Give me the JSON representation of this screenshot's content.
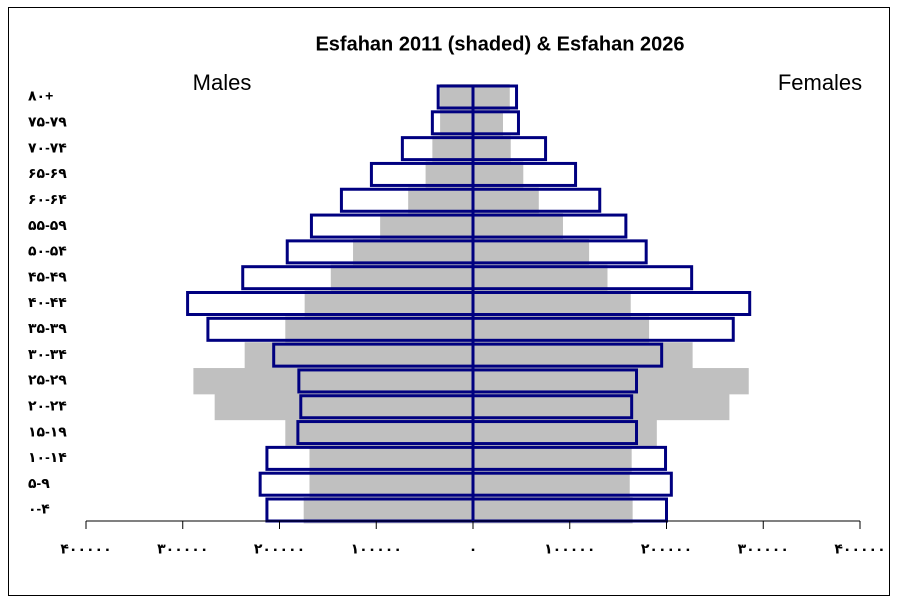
{
  "chart_data": {
    "type": "pyramid",
    "title": "Esfahan 2011 (shaded) & Esfahan 2026",
    "categories": [
      "۰-۴",
      "۵-۹",
      "۱۰-۱۴",
      "۱۵-۱۹",
      "۲۰-۲۴",
      "۲۵-۲۹",
      "۳۰-۳۴",
      "۳۵-۳۹",
      "۴۰-۴۴",
      "۴۵-۴۹",
      "۵۰-۵۴",
      "۵۵-۵۹",
      "۶۰-۶۴",
      "۶۵-۶۹",
      "۷۰-۷۴",
      "۷۵-۷۹",
      "۸۰+"
    ],
    "series": [
      {
        "name": "Males",
        "side": "left",
        "shaded": [
          175000,
          169000,
          169000,
          194000,
          267000,
          289000,
          236000,
          194000,
          174000,
          147000,
          124000,
          96000,
          67000,
          49000,
          42000,
          34000,
          34000
        ],
        "outline": [
          213000,
          220000,
          213000,
          181000,
          178000,
          180000,
          206000,
          274000,
          295000,
          238000,
          192000,
          167000,
          136000,
          105000,
          73000,
          42000,
          36000
        ]
      },
      {
        "name": "Females",
        "side": "right",
        "shaded": [
          165000,
          162000,
          164000,
          190000,
          265000,
          285000,
          227000,
          182000,
          163000,
          139000,
          120000,
          93000,
          68000,
          52000,
          39000,
          31000,
          38000
        ],
        "outline": [
          200000,
          205000,
          199000,
          169000,
          164000,
          169000,
          195000,
          269000,
          286000,
          226000,
          179000,
          158000,
          131000,
          106000,
          75000,
          47000,
          45000
        ]
      }
    ],
    "shaded_color": "#c0c0c0",
    "outline_color": "#000080",
    "xlim": [
      -400000,
      400000
    ],
    "xticks": [
      {
        "value": -400000,
        "label": "۴۰۰۰۰۰"
      },
      {
        "value": -300000,
        "label": "۳۰۰۰۰۰"
      },
      {
        "value": -200000,
        "label": "۲۰۰۰۰۰"
      },
      {
        "value": -100000,
        "label": "۱۰۰۰۰۰"
      },
      {
        "value": 0,
        "label": "۰"
      },
      {
        "value": 100000,
        "label": "۱۰۰۰۰۰"
      },
      {
        "value": 200000,
        "label": "۲۰۰۰۰۰"
      },
      {
        "value": 300000,
        "label": "۳۰۰۰۰۰"
      },
      {
        "value": 400000,
        "label": "۴۰۰۰۰۰"
      }
    ]
  }
}
